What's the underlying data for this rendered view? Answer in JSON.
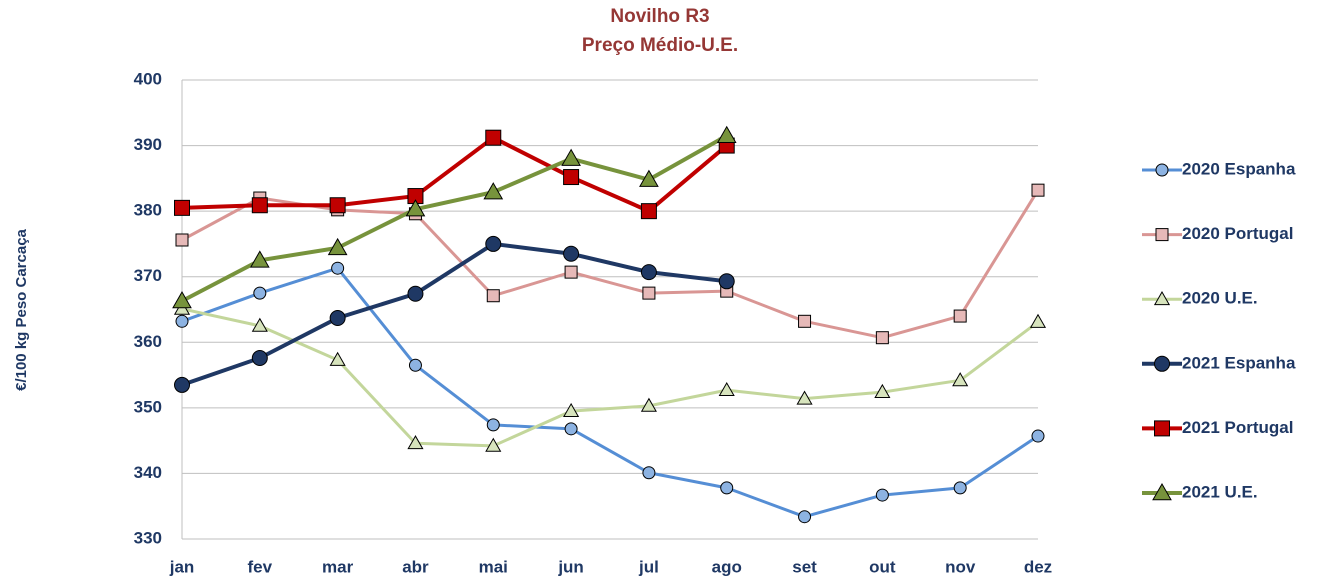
{
  "chart_data": {
    "type": "line",
    "title": "Novilho R3",
    "subtitle": "Preço Médio-U.E.",
    "y_label": "€/100 kg Peso Carcaça",
    "categories": [
      "jan",
      "fev",
      "mar",
      "abr",
      "mai",
      "jun",
      "jul",
      "ago",
      "set",
      "out",
      "nov",
      "dez"
    ],
    "ylim": [
      330,
      400
    ],
    "yticks": [
      330,
      340,
      350,
      360,
      370,
      380,
      390,
      400
    ],
    "grid": true,
    "legend": "right",
    "series": [
      {
        "name": "2020 Espanha",
        "color": "#558ed5",
        "marker_color": "#8db3e2",
        "marker": "circle",
        "width": 3,
        "values": [
          363.2,
          367.5,
          371.3,
          356.5,
          347.4,
          346.8,
          340.1,
          337.8,
          333.4,
          336.7,
          337.8,
          345.7
        ]
      },
      {
        "name": "2020 Portugal",
        "color": "#d99694",
        "marker_color": "#e6b9b8",
        "marker": "square",
        "width": 3,
        "values": [
          375.6,
          382,
          380.2,
          379.6,
          367.1,
          370.7,
          367.5,
          367.8,
          363.2,
          360.7,
          364,
          383.2
        ]
      },
      {
        "name": "2020 U.E.",
        "color": "#c3d69b",
        "marker_color": "#d7e4bd",
        "marker": "triangle",
        "width": 3,
        "values": [
          365.1,
          362.5,
          357.3,
          344.6,
          344.2,
          349.5,
          350.3,
          352.7,
          351.4,
          352.4,
          354.2,
          363.1
        ]
      },
      {
        "name": "2021 Espanha",
        "color": "#1f3864",
        "marker_color": "#1f3864",
        "marker": "circle",
        "width": 4,
        "values": [
          353.5,
          357.6,
          363.7,
          367.4,
          375,
          373.5,
          370.7,
          369.3,
          null,
          null,
          null,
          null
        ]
      },
      {
        "name": "2021 Portugal",
        "color": "#c00000",
        "marker_color": "#c00000",
        "marker": "square",
        "width": 4,
        "values": [
          380.5,
          380.9,
          380.9,
          382.3,
          391.2,
          385.2,
          380,
          390,
          null,
          null,
          null,
          null
        ]
      },
      {
        "name": "2021 U.E.",
        "color": "#77933c",
        "marker_color": "#77933c",
        "marker": "triangle",
        "width": 4,
        "values": [
          366.3,
          372.5,
          374.4,
          380.3,
          382.9,
          388,
          384.8,
          391.5,
          null,
          null,
          null,
          null
        ]
      }
    ]
  }
}
